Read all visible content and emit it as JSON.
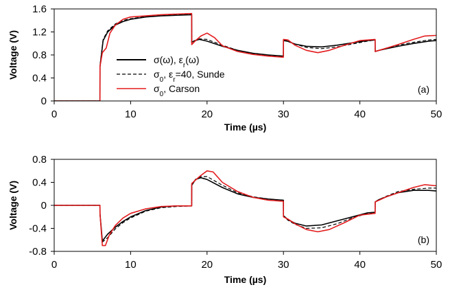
{
  "colors": {
    "black": "#000000",
    "red": "#e31a1c",
    "frame": "#000000"
  },
  "legend": {
    "items": [
      {
        "series": "sigma_omega",
        "style": "solid-black",
        "parts": [
          {
            "t": "σ(ω), ε"
          },
          {
            "t": "r",
            "sub": true
          },
          {
            "t": "(ω)"
          }
        ]
      },
      {
        "series": "sigma0_sunde",
        "style": "dashed-black",
        "parts": [
          {
            "t": "σ"
          },
          {
            "t": "0",
            "sub": true
          },
          {
            "t": ", ε"
          },
          {
            "t": "r",
            "sub": true
          },
          {
            "t": "=40, Sunde"
          }
        ]
      },
      {
        "series": "sigma0_carson",
        "style": "solid-red",
        "parts": [
          {
            "t": "σ"
          },
          {
            "t": "0",
            "sub": true
          },
          {
            "t": ", Carson"
          }
        ]
      }
    ]
  },
  "chart_data": [
    {
      "type": "line",
      "panel_label": "(a)",
      "xlabel": "Time (µs)",
      "ylabel": "Voltage (V)",
      "xlim": [
        0,
        50
      ],
      "ylim": [
        0,
        1.6
      ],
      "x_ticks": [
        0,
        10,
        20,
        30,
        40,
        50
      ],
      "y_ticks": [
        0,
        0.4,
        0.8,
        1.2,
        1.6
      ],
      "x_tick_labels": [
        "0",
        "10",
        "20",
        "30",
        "40",
        "50"
      ],
      "y_tick_labels": [
        "0",
        "0.4",
        "0.8",
        "1.2",
        "1.6"
      ],
      "grid": false,
      "legend": "center-left",
      "series": [
        {
          "key": "sigma_omega",
          "color": "#000000",
          "dash": "solid",
          "x": [
            0,
            5.99,
            6.0,
            6.4,
            7.0,
            8.0,
            9.0,
            10.0,
            12.0,
            14.0,
            16.0,
            17.99,
            18.0,
            18.4,
            19.0,
            20.0,
            22.0,
            24.0,
            26.0,
            28.0,
            29.99,
            30.0,
            30.5,
            31.5,
            33.0,
            35.0,
            37.0,
            39.0,
            41.0,
            41.99,
            42.0,
            42.5,
            43.5,
            45.0,
            47.0,
            49.0,
            50.0
          ],
          "y": [
            0,
            0,
            0.6,
            1.05,
            1.2,
            1.32,
            1.38,
            1.42,
            1.46,
            1.48,
            1.49,
            1.5,
            1.02,
            1.05,
            1.07,
            1.04,
            0.95,
            0.88,
            0.83,
            0.8,
            0.78,
            1.05,
            1.04,
            0.99,
            0.95,
            0.94,
            0.97,
            1.01,
            1.05,
            1.06,
            0.86,
            0.88,
            0.91,
            0.95,
            1.0,
            1.04,
            1.05
          ]
        },
        {
          "key": "sigma0_sunde",
          "color": "#000000",
          "dash": "dashed",
          "x": [
            0,
            5.99,
            6.0,
            6.4,
            7.0,
            8.0,
            9.0,
            10.0,
            12.0,
            14.0,
            16.0,
            17.99,
            18.0,
            18.4,
            19.0,
            20.0,
            22.0,
            24.0,
            26.0,
            28.0,
            29.99,
            30.0,
            30.5,
            31.5,
            33.0,
            35.0,
            37.0,
            39.0,
            41.0,
            41.99,
            42.0,
            42.5,
            43.5,
            45.0,
            47.0,
            49.0,
            50.0
          ],
          "y": [
            0,
            0,
            0.62,
            1.07,
            1.22,
            1.34,
            1.4,
            1.43,
            1.47,
            1.49,
            1.5,
            1.51,
            1.01,
            1.04,
            1.08,
            1.07,
            0.97,
            0.88,
            0.82,
            0.79,
            0.77,
            1.06,
            1.05,
            0.99,
            0.93,
            0.91,
            0.94,
            0.99,
            1.04,
            1.06,
            0.86,
            0.88,
            0.92,
            0.97,
            1.02,
            1.06,
            1.07
          ]
        },
        {
          "key": "sigma0_carson",
          "color": "#e31a1c",
          "dash": "solid",
          "x": [
            0,
            5.99,
            6.0,
            6.3,
            6.8,
            7.3,
            8.0,
            9.0,
            10.0,
            12.0,
            14.0,
            16.0,
            17.99,
            18.0,
            18.5,
            19.2,
            20.0,
            21.0,
            22.0,
            24.0,
            26.0,
            28.0,
            29.99,
            30.0,
            30.6,
            31.5,
            33.0,
            34.5,
            36.0,
            38.0,
            40.0,
            41.99,
            42.0,
            42.5,
            43.5,
            45.0,
            47.0,
            48.5,
            50.0
          ],
          "y": [
            0,
            0,
            0.6,
            0.84,
            0.92,
            1.18,
            1.32,
            1.42,
            1.46,
            1.48,
            1.5,
            1.51,
            1.52,
            0.98,
            1.05,
            1.13,
            1.18,
            1.1,
            0.96,
            0.86,
            0.81,
            0.78,
            0.76,
            1.07,
            1.06,
            0.97,
            0.88,
            0.84,
            0.88,
            0.97,
            1.05,
            1.07,
            0.86,
            0.88,
            0.92,
            0.98,
            1.07,
            1.13,
            1.14
          ]
        }
      ]
    },
    {
      "type": "line",
      "panel_label": "(b)",
      "xlabel": "Time (µs)",
      "ylabel": "Voltage (V)",
      "xlim": [
        0,
        50
      ],
      "ylim": [
        -0.8,
        0.8
      ],
      "x_ticks": [
        0,
        10,
        20,
        30,
        40,
        50
      ],
      "y_ticks": [
        -0.8,
        -0.4,
        0,
        0.4,
        0.8
      ],
      "x_tick_labels": [
        "0",
        "10",
        "20",
        "30",
        "40",
        "50"
      ],
      "y_tick_labels": [
        "-0.8",
        "-0.4",
        "0",
        "0.4",
        "0.8"
      ],
      "grid": false,
      "legend": "none",
      "series": [
        {
          "key": "sigma_omega",
          "color": "#000000",
          "dash": "solid",
          "x": [
            0,
            5.99,
            6.0,
            6.3,
            7.0,
            8.0,
            9.0,
            10.0,
            12.0,
            14.0,
            16.0,
            17.99,
            18.0,
            18.5,
            19.2,
            20.0,
            22.0,
            24.0,
            26.0,
            28.0,
            29.99,
            30.0,
            30.6,
            31.5,
            33.0,
            35.0,
            37.0,
            39.0,
            41.0,
            41.99,
            42.0,
            42.5,
            43.5,
            45.0,
            47.0,
            49.0,
            50.0
          ],
          "y": [
            0,
            0,
            -0.15,
            -0.62,
            -0.5,
            -0.38,
            -0.28,
            -0.2,
            -0.09,
            -0.03,
            -0.01,
            -0.01,
            0.35,
            0.45,
            0.48,
            0.45,
            0.31,
            0.2,
            0.14,
            0.11,
            0.09,
            -0.18,
            -0.25,
            -0.31,
            -0.36,
            -0.34,
            -0.27,
            -0.2,
            -0.13,
            -0.12,
            0.06,
            0.1,
            0.15,
            0.22,
            0.26,
            0.26,
            0.25
          ]
        },
        {
          "key": "sigma0_sunde",
          "color": "#000000",
          "dash": "dashed",
          "x": [
            0,
            5.99,
            6.0,
            6.3,
            7.0,
            8.0,
            9.0,
            10.0,
            12.0,
            14.0,
            16.0,
            17.99,
            18.0,
            18.5,
            19.2,
            20.0,
            22.0,
            24.0,
            26.0,
            28.0,
            29.99,
            30.0,
            30.6,
            31.5,
            33.0,
            35.0,
            37.0,
            39.0,
            41.0,
            41.99,
            42.0,
            42.5,
            43.5,
            45.0,
            47.0,
            49.0,
            50.0
          ],
          "y": [
            0,
            0,
            -0.15,
            -0.64,
            -0.56,
            -0.41,
            -0.3,
            -0.22,
            -0.1,
            -0.04,
            -0.02,
            -0.01,
            0.36,
            0.45,
            0.5,
            0.5,
            0.35,
            0.22,
            0.15,
            0.11,
            0.09,
            -0.18,
            -0.26,
            -0.33,
            -0.4,
            -0.39,
            -0.32,
            -0.22,
            -0.14,
            -0.12,
            0.06,
            0.1,
            0.16,
            0.24,
            0.28,
            0.3,
            0.3
          ]
        },
        {
          "key": "sigma0_carson",
          "color": "#e31a1c",
          "dash": "solid",
          "x": [
            0,
            5.99,
            6.0,
            6.3,
            6.7,
            7.2,
            8.0,
            9.0,
            10.0,
            12.0,
            14.0,
            16.0,
            17.99,
            18.0,
            18.5,
            19.2,
            20.0,
            20.8,
            22.0,
            24.0,
            26.0,
            28.0,
            29.99,
            30.0,
            30.6,
            31.5,
            33.0,
            34.5,
            36.0,
            38.0,
            40.0,
            41.99,
            42.0,
            42.5,
            43.5,
            45.0,
            47.0,
            48.5,
            50.0
          ],
          "y": [
            0,
            0,
            -0.15,
            -0.7,
            -0.7,
            -0.52,
            -0.35,
            -0.22,
            -0.14,
            -0.06,
            -0.02,
            -0.01,
            -0.01,
            0.38,
            0.44,
            0.52,
            0.6,
            0.58,
            0.4,
            0.24,
            0.14,
            0.09,
            0.07,
            -0.2,
            -0.24,
            -0.32,
            -0.42,
            -0.46,
            -0.42,
            -0.3,
            -0.17,
            -0.14,
            0.06,
            0.09,
            0.15,
            0.22,
            0.31,
            0.36,
            0.34
          ]
        }
      ]
    }
  ]
}
